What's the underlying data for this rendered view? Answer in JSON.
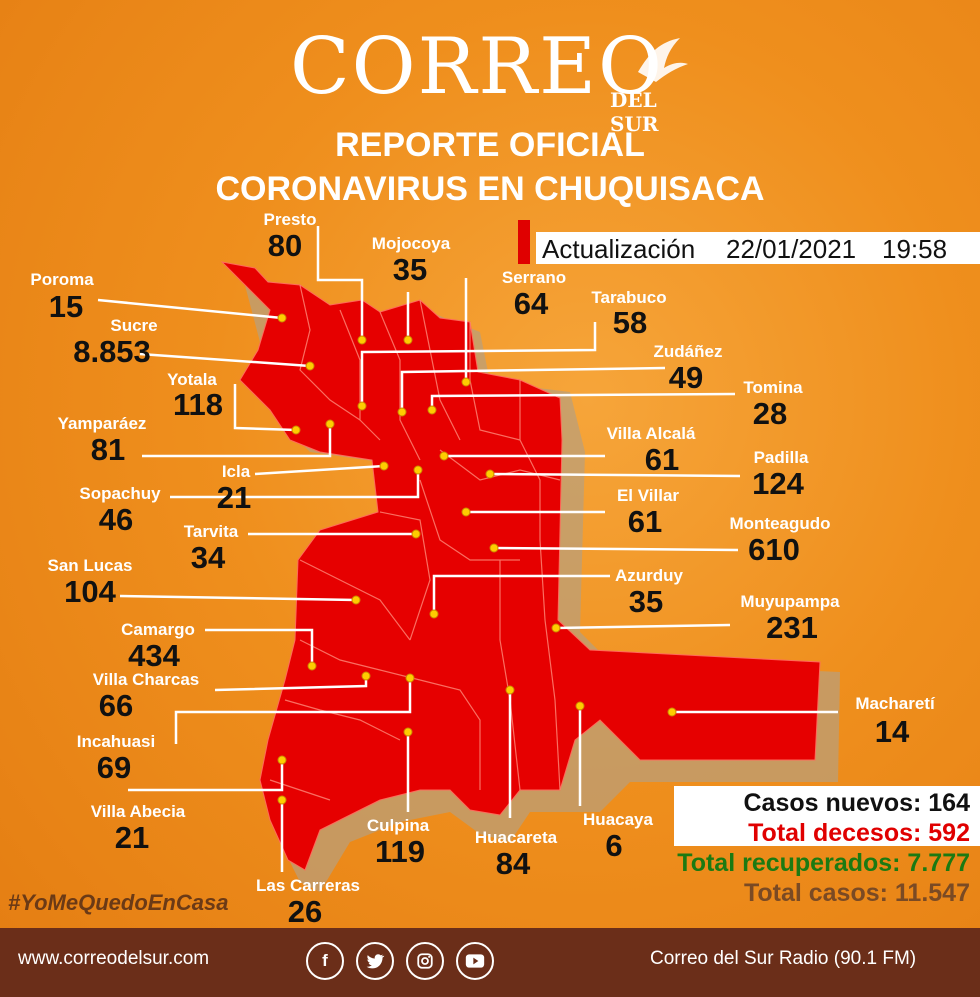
{
  "header": {
    "logo_main": "CORREO",
    "logo_sub": "DEL SUR",
    "title_line1": "REPORTE OFICIAL",
    "title_line2": "CORONAVIRUS EN CHUQUISACA"
  },
  "update": {
    "label": "Actualización",
    "date": "22/01/2021",
    "time": "19:58"
  },
  "municipalities": [
    {
      "name": "Presto",
      "cases": "80"
    },
    {
      "name": "Mojocoya",
      "cases": "35"
    },
    {
      "name": "Poroma",
      "cases": "15"
    },
    {
      "name": "Serrano",
      "cases": "64"
    },
    {
      "name": "Tarabuco",
      "cases": "58"
    },
    {
      "name": "Sucre",
      "cases": "8.853"
    },
    {
      "name": "Zudáñez",
      "cases": "49"
    },
    {
      "name": "Yotala",
      "cases": "118"
    },
    {
      "name": "Tomina",
      "cases": "28"
    },
    {
      "name": "Yamparáez",
      "cases": "81"
    },
    {
      "name": "Villa Alcalá",
      "cases": "61"
    },
    {
      "name": "Icla",
      "cases": "21"
    },
    {
      "name": "Padilla",
      "cases": "124"
    },
    {
      "name": "Sopachuy",
      "cases": "46"
    },
    {
      "name": "El Villar",
      "cases": "61"
    },
    {
      "name": "Tarvita",
      "cases": "34"
    },
    {
      "name": "Monteagudo",
      "cases": "610"
    },
    {
      "name": "San Lucas",
      "cases": "104"
    },
    {
      "name": "Azurduy",
      "cases": "35"
    },
    {
      "name": "Muyupampa",
      "cases": "231"
    },
    {
      "name": "Camargo",
      "cases": "434"
    },
    {
      "name": "Villa Charcas",
      "cases": "66"
    },
    {
      "name": "Macharetí",
      "cases": "14"
    },
    {
      "name": "Incahuasi",
      "cases": "69"
    },
    {
      "name": "Villa Abecia",
      "cases": "21"
    },
    {
      "name": "Culpina",
      "cases": "119"
    },
    {
      "name": "Huacareta",
      "cases": "84"
    },
    {
      "name": "Huacaya",
      "cases": "6"
    },
    {
      "name": "Las Carreras",
      "cases": "26"
    }
  ],
  "stats": {
    "new_cases": "Casos nuevos: 164",
    "deaths": "Total decesos: 592",
    "recovered": "Total recuperados: 7.777",
    "total": "Total casos: 11.547"
  },
  "colors": {
    "background": "#ef8f1d",
    "map_fill": "#e60000",
    "deaths": "#e00000",
    "recovered": "#1c7a12",
    "total": "#7a4a24",
    "footer": "#6b2e19"
  },
  "hashtag": "#YoMeQuedoEnCasa",
  "footer": {
    "website": "www.correodelsur.com",
    "radio": "Correo del Sur Radio (90.1 FM)",
    "social": [
      "facebook-icon",
      "twitter-icon",
      "instagram-icon",
      "youtube-icon"
    ]
  }
}
